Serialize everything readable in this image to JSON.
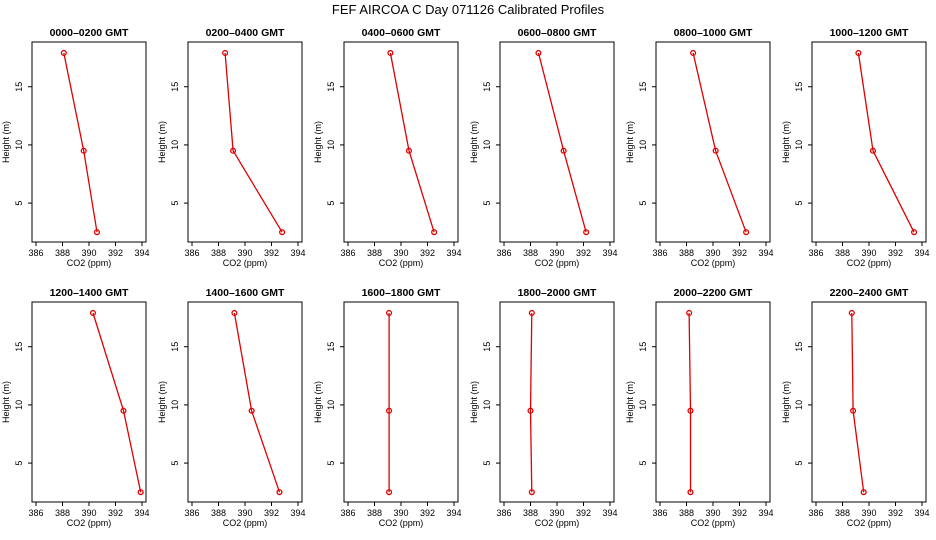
{
  "title": "FEF AIRCOA C  Day 071126  Calibrated Profiles",
  "colors": {
    "series": "#e00000",
    "axis": "#000000",
    "background": "#ffffff"
  },
  "chart_data": [
    {
      "type": "line",
      "title": "0000–0200 GMT",
      "xlabel": "CO2 (ppm)",
      "ylabel": "Height (m)",
      "xlim": [
        386,
        394
      ],
      "ylim": [
        2,
        18.5
      ],
      "xticks": [
        386,
        388,
        390,
        392,
        394
      ],
      "yticks": [
        5,
        10,
        15
      ],
      "grid": false,
      "points": [
        [
          388.1,
          17.9
        ],
        [
          389.6,
          9.5
        ],
        [
          390.6,
          2.5
        ]
      ]
    },
    {
      "type": "line",
      "title": "0200–0400 GMT",
      "xlabel": "CO2 (ppm)",
      "ylabel": "Height (m)",
      "xlim": [
        386,
        394
      ],
      "ylim": [
        2,
        18.5
      ],
      "xticks": [
        386,
        388,
        390,
        392,
        394
      ],
      "yticks": [
        5,
        10,
        15
      ],
      "grid": false,
      "points": [
        [
          388.5,
          17.9
        ],
        [
          389.1,
          9.5
        ],
        [
          392.8,
          2.5
        ]
      ]
    },
    {
      "type": "line",
      "title": "0400–0600 GMT",
      "xlabel": "CO2 (ppm)",
      "ylabel": "Height (m)",
      "xlim": [
        386,
        394
      ],
      "ylim": [
        2,
        18.5
      ],
      "xticks": [
        386,
        388,
        390,
        392,
        394
      ],
      "yticks": [
        5,
        10,
        15
      ],
      "grid": false,
      "points": [
        [
          389.2,
          17.9
        ],
        [
          390.6,
          9.5
        ],
        [
          392.5,
          2.5
        ]
      ]
    },
    {
      "type": "line",
      "title": "0600–0800 GMT",
      "xlabel": "CO2 (ppm)",
      "ylabel": "Height (m)",
      "xlim": [
        386,
        394
      ],
      "ylim": [
        2,
        18.5
      ],
      "xticks": [
        386,
        388,
        390,
        392,
        394
      ],
      "yticks": [
        5,
        10,
        15
      ],
      "grid": false,
      "points": [
        [
          388.6,
          17.9
        ],
        [
          390.5,
          9.5
        ],
        [
          392.2,
          2.5
        ]
      ]
    },
    {
      "type": "line",
      "title": "0800–1000 GMT",
      "xlabel": "CO2 (ppm)",
      "ylabel": "Height (m)",
      "xlim": [
        386,
        394
      ],
      "ylim": [
        2,
        18.5
      ],
      "xticks": [
        386,
        388,
        390,
        392,
        394
      ],
      "yticks": [
        5,
        10,
        15
      ],
      "grid": false,
      "points": [
        [
          388.5,
          17.9
        ],
        [
          390.2,
          9.5
        ],
        [
          392.5,
          2.5
        ]
      ]
    },
    {
      "type": "line",
      "title": "1000–1200 GMT",
      "xlabel": "CO2 (ppm)",
      "ylabel": "Height (m)",
      "xlim": [
        386,
        394
      ],
      "ylim": [
        2,
        18.5
      ],
      "xticks": [
        386,
        388,
        390,
        392,
        394
      ],
      "yticks": [
        5,
        10,
        15
      ],
      "grid": false,
      "points": [
        [
          389.2,
          17.9
        ],
        [
          390.3,
          9.5
        ],
        [
          393.4,
          2.5
        ]
      ]
    },
    {
      "type": "line",
      "title": "1200–1400 GMT",
      "xlabel": "CO2 (ppm)",
      "ylabel": "Height (m)",
      "xlim": [
        386,
        394
      ],
      "ylim": [
        2,
        18.5
      ],
      "xticks": [
        386,
        388,
        390,
        392,
        394
      ],
      "yticks": [
        5,
        10,
        15
      ],
      "grid": false,
      "points": [
        [
          390.3,
          17.9
        ],
        [
          392.6,
          9.5
        ],
        [
          393.9,
          2.5
        ]
      ]
    },
    {
      "type": "line",
      "title": "1400–1600 GMT",
      "xlabel": "CO2 (ppm)",
      "ylabel": "Height (m)",
      "xlim": [
        386,
        394
      ],
      "ylim": [
        2,
        18.5
      ],
      "xticks": [
        386,
        388,
        390,
        392,
        394
      ],
      "yticks": [
        5,
        10,
        15
      ],
      "grid": false,
      "points": [
        [
          389.2,
          17.9
        ],
        [
          390.5,
          9.5
        ],
        [
          392.6,
          2.5
        ]
      ]
    },
    {
      "type": "line",
      "title": "1600–1800 GMT",
      "xlabel": "CO2 (ppm)",
      "ylabel": "Height (m)",
      "xlim": [
        386,
        394
      ],
      "ylim": [
        2,
        18.5
      ],
      "xticks": [
        386,
        388,
        390,
        392,
        394
      ],
      "yticks": [
        5,
        10,
        15
      ],
      "grid": false,
      "points": [
        [
          389.1,
          17.9
        ],
        [
          389.1,
          9.5
        ],
        [
          389.1,
          2.5
        ]
      ]
    },
    {
      "type": "line",
      "title": "1800–2000 GMT",
      "xlabel": "CO2 (ppm)",
      "ylabel": "Height (m)",
      "xlim": [
        386,
        394
      ],
      "ylim": [
        2,
        18.5
      ],
      "xticks": [
        386,
        388,
        390,
        392,
        394
      ],
      "yticks": [
        5,
        10,
        15
      ],
      "grid": false,
      "points": [
        [
          388.1,
          17.9
        ],
        [
          388.0,
          9.5
        ],
        [
          388.1,
          2.5
        ]
      ]
    },
    {
      "type": "line",
      "title": "2000–2200 GMT",
      "xlabel": "CO2 (ppm)",
      "ylabel": "Height (m)",
      "xlim": [
        386,
        394
      ],
      "ylim": [
        2,
        18.5
      ],
      "xticks": [
        386,
        388,
        390,
        392,
        394
      ],
      "yticks": [
        5,
        10,
        15
      ],
      "grid": false,
      "points": [
        [
          388.2,
          17.9
        ],
        [
          388.3,
          9.5
        ],
        [
          388.3,
          2.5
        ]
      ]
    },
    {
      "type": "line",
      "title": "2200–2400 GMT",
      "xlabel": "CO2 (ppm)",
      "ylabel": "Height (m)",
      "xlim": [
        386,
        394
      ],
      "ylim": [
        2,
        18.5
      ],
      "xticks": [
        386,
        388,
        390,
        392,
        394
      ],
      "yticks": [
        5,
        10,
        15
      ],
      "grid": false,
      "points": [
        [
          388.7,
          17.9
        ],
        [
          388.8,
          9.5
        ],
        [
          389.6,
          2.5
        ]
      ]
    }
  ]
}
